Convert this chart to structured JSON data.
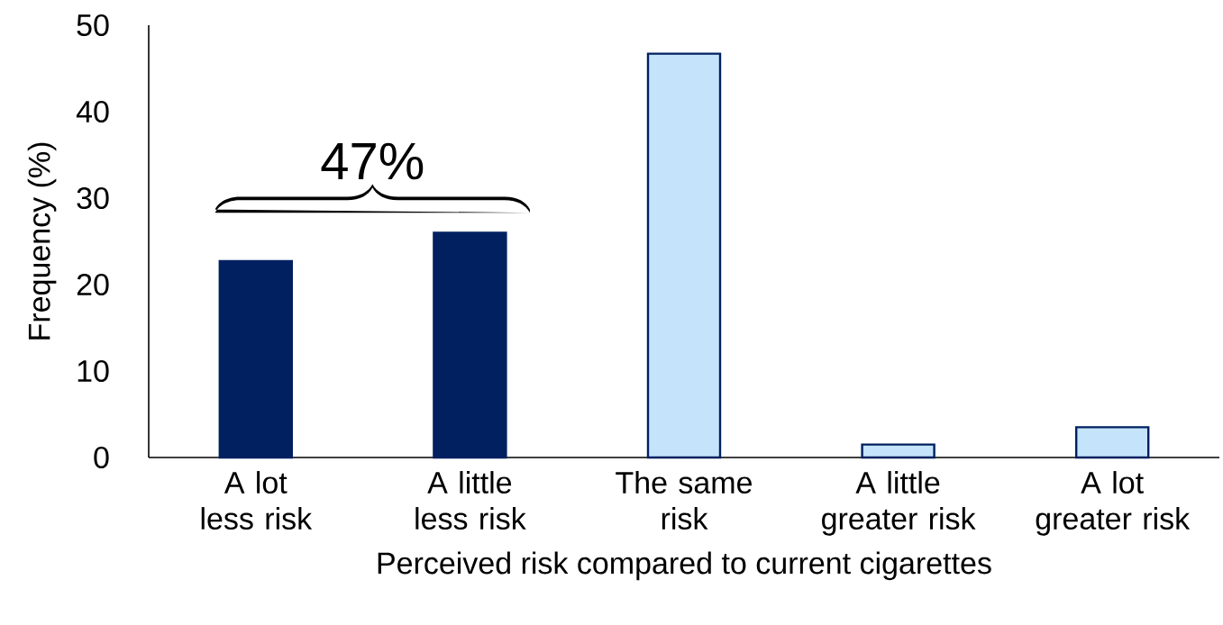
{
  "chart_data": {
    "type": "bar",
    "xlabel": "Perceived risk compared to current cigarettes",
    "ylabel": "Frequency (%)",
    "categories": [
      "A lot less risk",
      "A little less risk",
      "The same risk",
      "A little greater risk",
      "A lot greater risk"
    ],
    "values": [
      22.7,
      26.0,
      46.7,
      1.5,
      3.5
    ],
    "colors": [
      "#002060",
      "#002060",
      "#c5e3fb",
      "#c5e3fb",
      "#c5e3fb"
    ],
    "ylim": [
      0,
      50
    ],
    "yticks": [
      0,
      10,
      20,
      30,
      40,
      50
    ],
    "grid": false,
    "annotations": [
      "47%"
    ]
  }
}
